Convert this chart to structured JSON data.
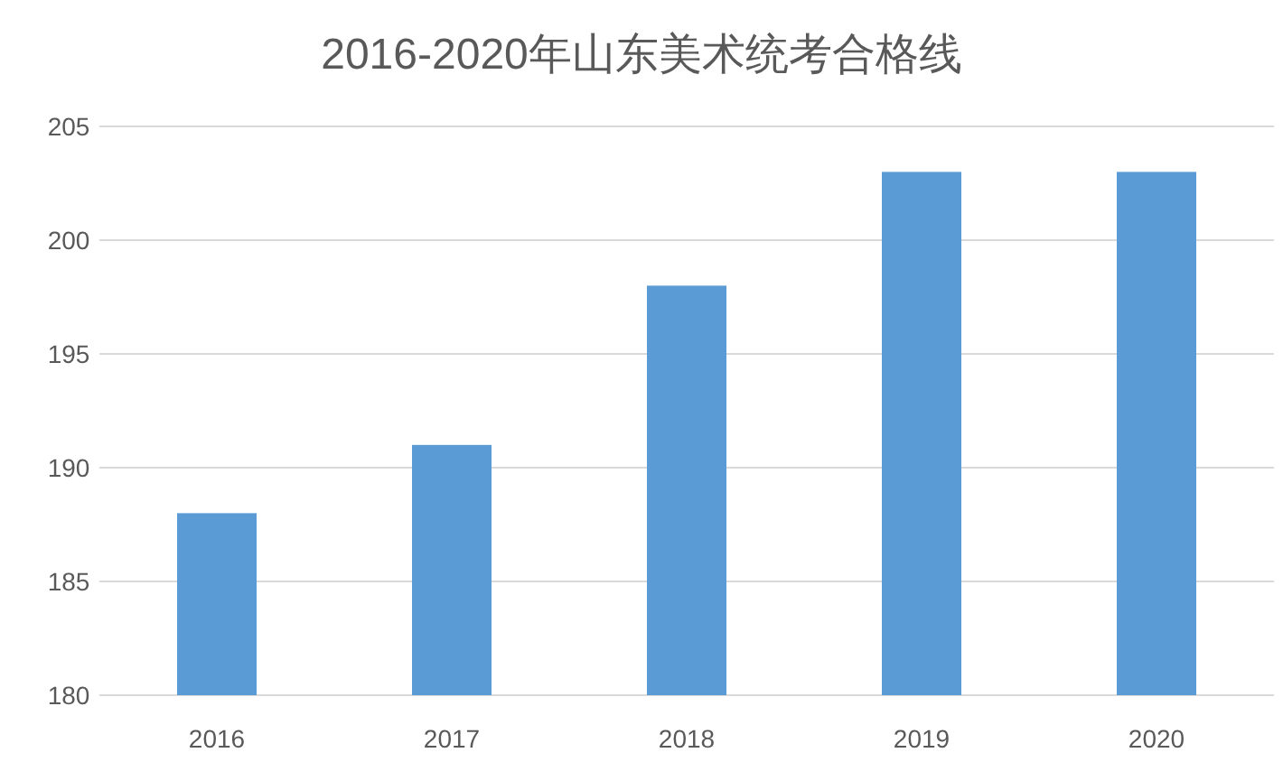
{
  "chart_data": {
    "type": "bar",
    "title": "2016-2020年山东美术统考合格线",
    "categories": [
      "2016",
      "2017",
      "2018",
      "2019",
      "2020"
    ],
    "values": [
      188,
      191,
      198,
      203,
      203
    ],
    "color": "#5b9bd5",
    "ylim": [
      180,
      205
    ],
    "yticks": [
      180,
      185,
      190,
      195,
      200,
      205
    ],
    "grid": "y"
  }
}
